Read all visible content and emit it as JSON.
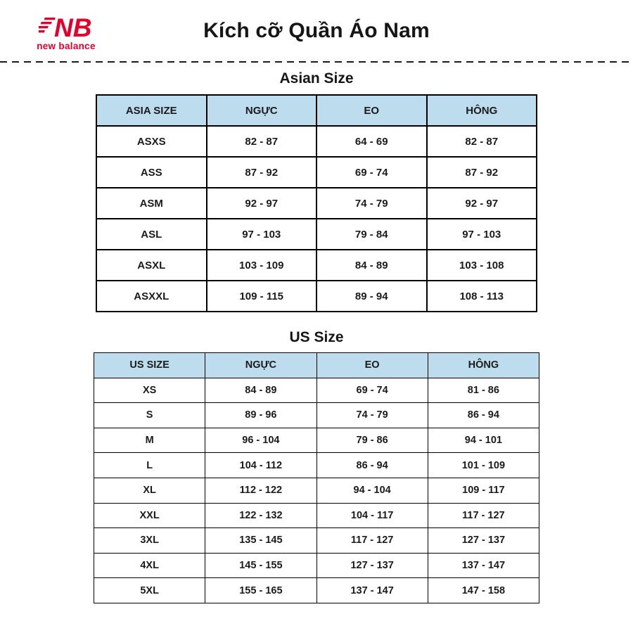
{
  "header": {
    "logo": {
      "monogram": "NB",
      "brand": "new balance",
      "color": "#e4002b"
    },
    "title": "Kích cỡ Quần Áo Nam"
  },
  "colors": {
    "table_header_bg": "#bddcee",
    "border": "#000000",
    "text": "#1b1b1b",
    "brand_red": "#e4002b"
  },
  "sections": [
    {
      "title": "Asian Size",
      "columns": [
        "ASIA SIZE",
        "NGỰC",
        "EO",
        "HÔNG"
      ],
      "rows": [
        [
          "ASXS",
          "82 - 87",
          "64 - 69",
          "82 - 87"
        ],
        [
          "ASS",
          "87 - 92",
          "69 - 74",
          "87 - 92"
        ],
        [
          "ASM",
          "92 - 97",
          "74 - 79",
          "92 - 97"
        ],
        [
          "ASL",
          "97 - 103",
          "79 - 84",
          "97 - 103"
        ],
        [
          "ASXL",
          "103 - 109",
          "84 - 89",
          "103 - 108"
        ],
        [
          "ASXXL",
          "109 - 115",
          "89 - 94",
          "108 - 113"
        ]
      ]
    },
    {
      "title": "US Size",
      "columns": [
        "US SIZE",
        "NGỰC",
        "EO",
        "HÔNG"
      ],
      "rows": [
        [
          "XS",
          "84 - 89",
          "69 - 74",
          "81 - 86"
        ],
        [
          "S",
          "89 - 96",
          "74 - 79",
          "86 - 94"
        ],
        [
          "M",
          "96 - 104",
          "79 - 86",
          "94 - 101"
        ],
        [
          "L",
          "104 - 112",
          "86 - 94",
          "101 - 109"
        ],
        [
          "XL",
          "112 - 122",
          "94 - 104",
          "109 - 117"
        ],
        [
          "XXL",
          "122 - 132",
          "104 - 117",
          "117 - 127"
        ],
        [
          "3XL",
          "135 - 145",
          "117 - 127",
          "127 - 137"
        ],
        [
          "4XL",
          "145 - 155",
          "127 - 137",
          "137 - 147"
        ],
        [
          "5XL",
          "155 - 165",
          "137 - 147",
          "147 - 158"
        ]
      ]
    }
  ]
}
